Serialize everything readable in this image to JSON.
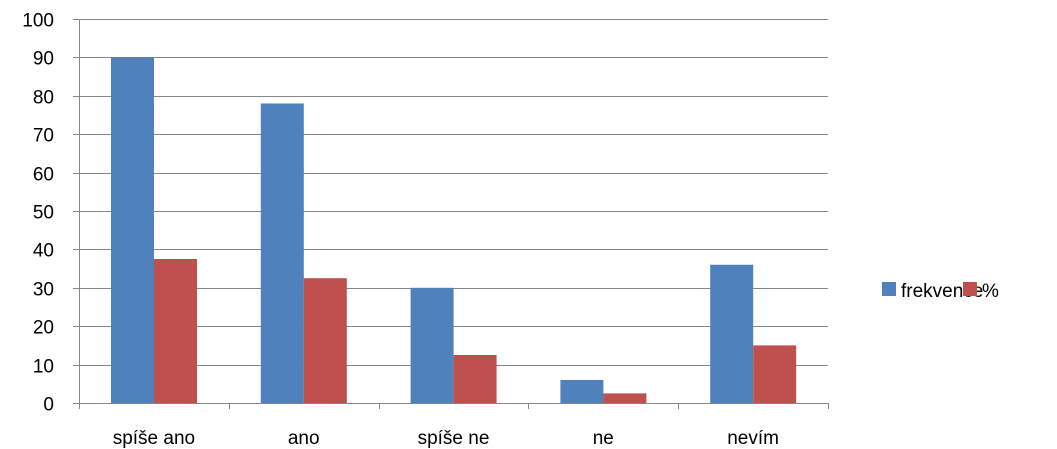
{
  "chart_data": {
    "type": "bar",
    "categories": [
      "spíše ano",
      "ano",
      "spíše ne",
      "ne",
      "nevím"
    ],
    "series": [
      {
        "name": "frekvence",
        "values": [
          90,
          78,
          30,
          6,
          36
        ],
        "color": "#4F81BD"
      },
      {
        "name": "%",
        "values": [
          37.5,
          32.5,
          12.5,
          2.5,
          15
        ],
        "color": "#C0504D"
      }
    ],
    "ylim": [
      0,
      100
    ],
    "yticks": [
      "0",
      "10",
      "20",
      "30",
      "40",
      "50",
      "60",
      "70",
      "80",
      "90",
      "100"
    ],
    "grid": true,
    "legend": "right",
    "gridColor": "#868686"
  }
}
